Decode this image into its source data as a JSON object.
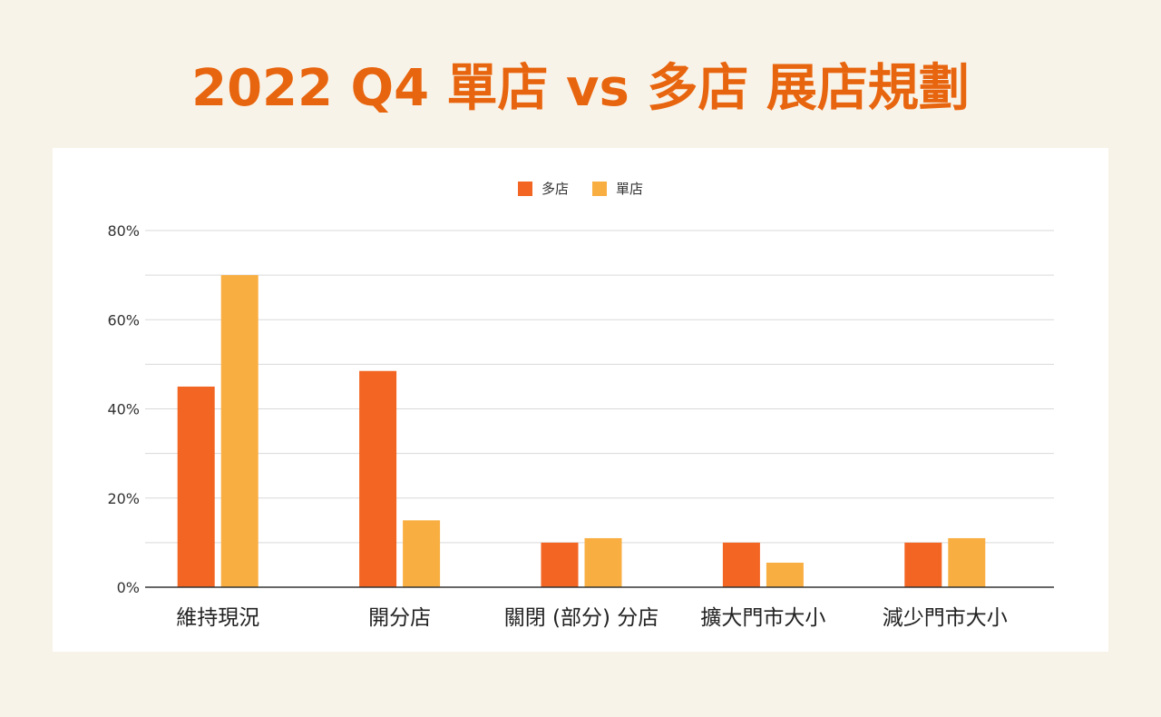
{
  "title": "2022 Q4 單店 vs 多店 展店規劃",
  "chart_data": {
    "type": "bar",
    "categories": [
      "維持現況",
      "開分店",
      "關閉 (部分) 分店",
      "擴大門市大小",
      "減少門市大小"
    ],
    "series": [
      {
        "name": "多店",
        "color": "#f26522",
        "values": [
          45,
          48.5,
          10,
          10,
          10
        ]
      },
      {
        "name": "單店",
        "color": "#f9ae42",
        "values": [
          70,
          15,
          11,
          5.5,
          11
        ]
      }
    ],
    "y_ticks": [
      {
        "value": 0,
        "label": "0%"
      },
      {
        "value": 20,
        "label": "20%"
      },
      {
        "value": 40,
        "label": "40%"
      },
      {
        "value": 60,
        "label": "60%"
      },
      {
        "value": 80,
        "label": "80%"
      }
    ],
    "ylim": [
      0,
      80
    ],
    "gridline_step": 10,
    "legend_position": "top"
  }
}
